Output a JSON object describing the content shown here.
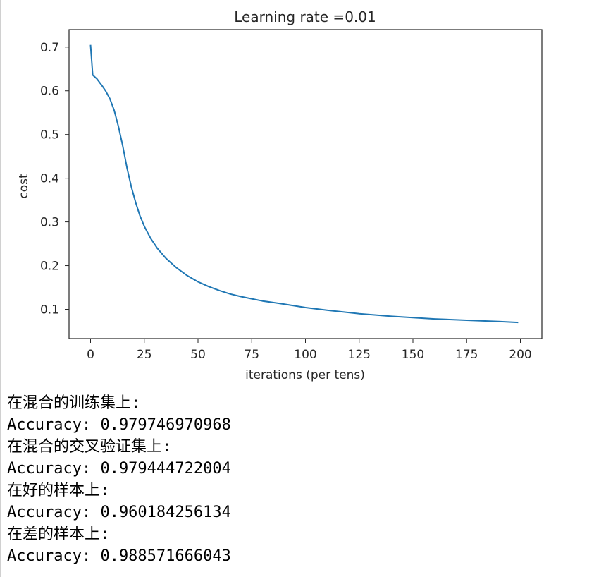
{
  "chart_data": {
    "type": "line",
    "title": "Learning rate =0.01",
    "xlabel": "iterations (per tens)",
    "ylabel": "cost",
    "xlim": [
      -10,
      210
    ],
    "ylim": [
      0.033,
      0.74
    ],
    "xticks": [
      0,
      25,
      50,
      75,
      100,
      125,
      150,
      175,
      200
    ],
    "yticks": [
      0.1,
      0.2,
      0.3,
      0.4,
      0.5,
      0.6,
      0.7
    ],
    "grid": false,
    "color": "#1f77b4",
    "series": [
      {
        "x": [
          0,
          1,
          3,
          5,
          7,
          9,
          11,
          13,
          15,
          17,
          19,
          21,
          23,
          25,
          28,
          31,
          35,
          40,
          45,
          50,
          55,
          60,
          65,
          70,
          75,
          80,
          90,
          100,
          110,
          125,
          140,
          150,
          160,
          175,
          190,
          199
        ],
        "y": [
          0.705,
          0.636,
          0.627,
          0.614,
          0.6,
          0.582,
          0.555,
          0.518,
          0.473,
          0.423,
          0.38,
          0.344,
          0.314,
          0.29,
          0.262,
          0.24,
          0.217,
          0.195,
          0.177,
          0.163,
          0.152,
          0.143,
          0.135,
          0.129,
          0.124,
          0.119,
          0.112,
          0.104,
          0.098,
          0.09,
          0.084,
          0.081,
          0.078,
          0.075,
          0.072,
          0.07
        ]
      }
    ]
  },
  "output": [
    "在混合的训练集上:",
    "Accuracy: 0.979746970968",
    "在混合的交叉验证集上:",
    "Accuracy: 0.979444722004",
    "在好的样本上:",
    "Accuracy: 0.960184256134",
    "在差的样本上:",
    "Accuracy: 0.988571666043"
  ]
}
